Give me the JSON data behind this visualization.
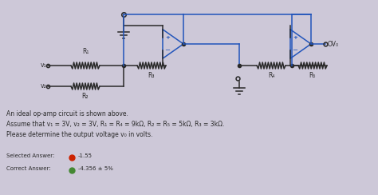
{
  "bg_color": "#cdc8d8",
  "circuit_color": "#2a2a2a",
  "blue_color": "#2255bb",
  "line1": "An ideal op-amp circuit is shown above.",
  "line2": "Assume that v₁ = 3V, v₂ = 3V, R₁ = R₄ = 9kΩ, R₂ = R₅ = 5kΩ, R₃ = 3kΩ.",
  "line3": "Please determine the output voltage v₀ in volts.",
  "selected_label": "Selected Answer:",
  "selected_value": "-1.55",
  "correct_label": "Correct Answer:",
  "correct_value": "-4.356 ± 5%",
  "selected_color": "#cc2200",
  "correct_color": "#448833"
}
